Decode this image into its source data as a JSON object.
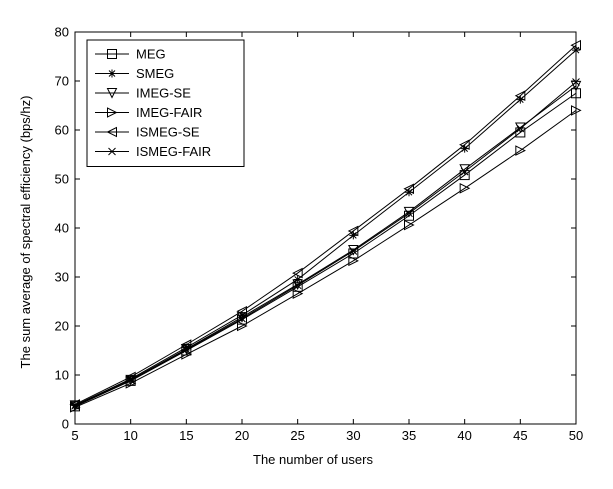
{
  "chart_data": {
    "type": "line",
    "xlabel": "The number of users",
    "ylabel": "The sum average of spectral efficiency (bps/hz)",
    "xlim": [
      5,
      50
    ],
    "ylim": [
      0,
      80
    ],
    "x": [
      5,
      10,
      15,
      20,
      25,
      30,
      35,
      40,
      45,
      50
    ],
    "x_ticks": [
      5,
      10,
      15,
      20,
      25,
      30,
      35,
      40,
      45,
      50
    ],
    "y_ticks": [
      0,
      10,
      20,
      30,
      40,
      50,
      60,
      70,
      80
    ],
    "grid": false,
    "legend_position": "top-left",
    "series": [
      {
        "name": "MEG",
        "marker": "square",
        "values": [
          3.6,
          8.8,
          15.0,
          21.3,
          28.0,
          34.8,
          42.5,
          50.8,
          59.5,
          67.5
        ]
      },
      {
        "name": "SMEG",
        "marker": "asterisk",
        "values": [
          3.8,
          9.2,
          15.6,
          22.2,
          29.5,
          38.5,
          47.3,
          56.2,
          66.2,
          76.3
        ]
      },
      {
        "name": "IMEG-SE",
        "marker": "triangle-down",
        "values": [
          3.8,
          9.0,
          15.3,
          21.8,
          28.5,
          35.5,
          43.3,
          52.0,
          60.5,
          69.0
        ]
      },
      {
        "name": "IMEG-FAIR",
        "marker": "triangle-right",
        "values": [
          3.4,
          8.3,
          14.2,
          20.0,
          26.6,
          33.3,
          40.6,
          48.1,
          55.8,
          64.0
        ]
      },
      {
        "name": "ISMEG-SE",
        "marker": "triangle-left",
        "values": [
          4.0,
          9.6,
          16.2,
          23.0,
          30.8,
          39.4,
          48.0,
          57.0,
          67.0,
          77.3
        ]
      },
      {
        "name": "ISMEG-FAIR",
        "marker": "x",
        "values": [
          3.7,
          9.0,
          15.2,
          21.5,
          28.3,
          35.3,
          43.0,
          51.5,
          60.3,
          69.8
        ]
      }
    ],
    "line_color": "#000000"
  }
}
